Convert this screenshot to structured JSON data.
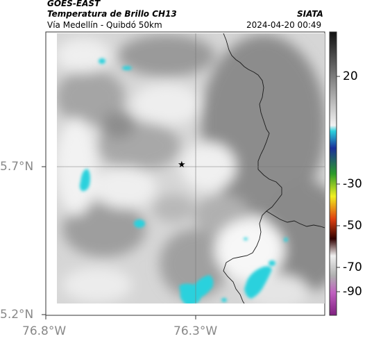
{
  "header": {
    "satellite": "GOES-EAST",
    "product": "Temperatura de Brillo CH13",
    "region": "Vía Medellín - Quibdó 50km",
    "agency": "SIATA",
    "datetime": "2024-04-20 00:49"
  },
  "axes": {
    "y_ticks": [
      "5.7°N",
      "5.2°N"
    ],
    "x_ticks": [
      "76.8°W",
      "76.3°W"
    ]
  },
  "colorbar": {
    "ticks": [
      "20",
      "-30",
      "-50",
      "-70",
      "-90"
    ]
  },
  "colors": {
    "cold_cloud": "#2ad1dd",
    "background_gray": "#d9d9d9",
    "border_line": "#1a1a1a"
  },
  "marker": {
    "symbol": "★"
  }
}
